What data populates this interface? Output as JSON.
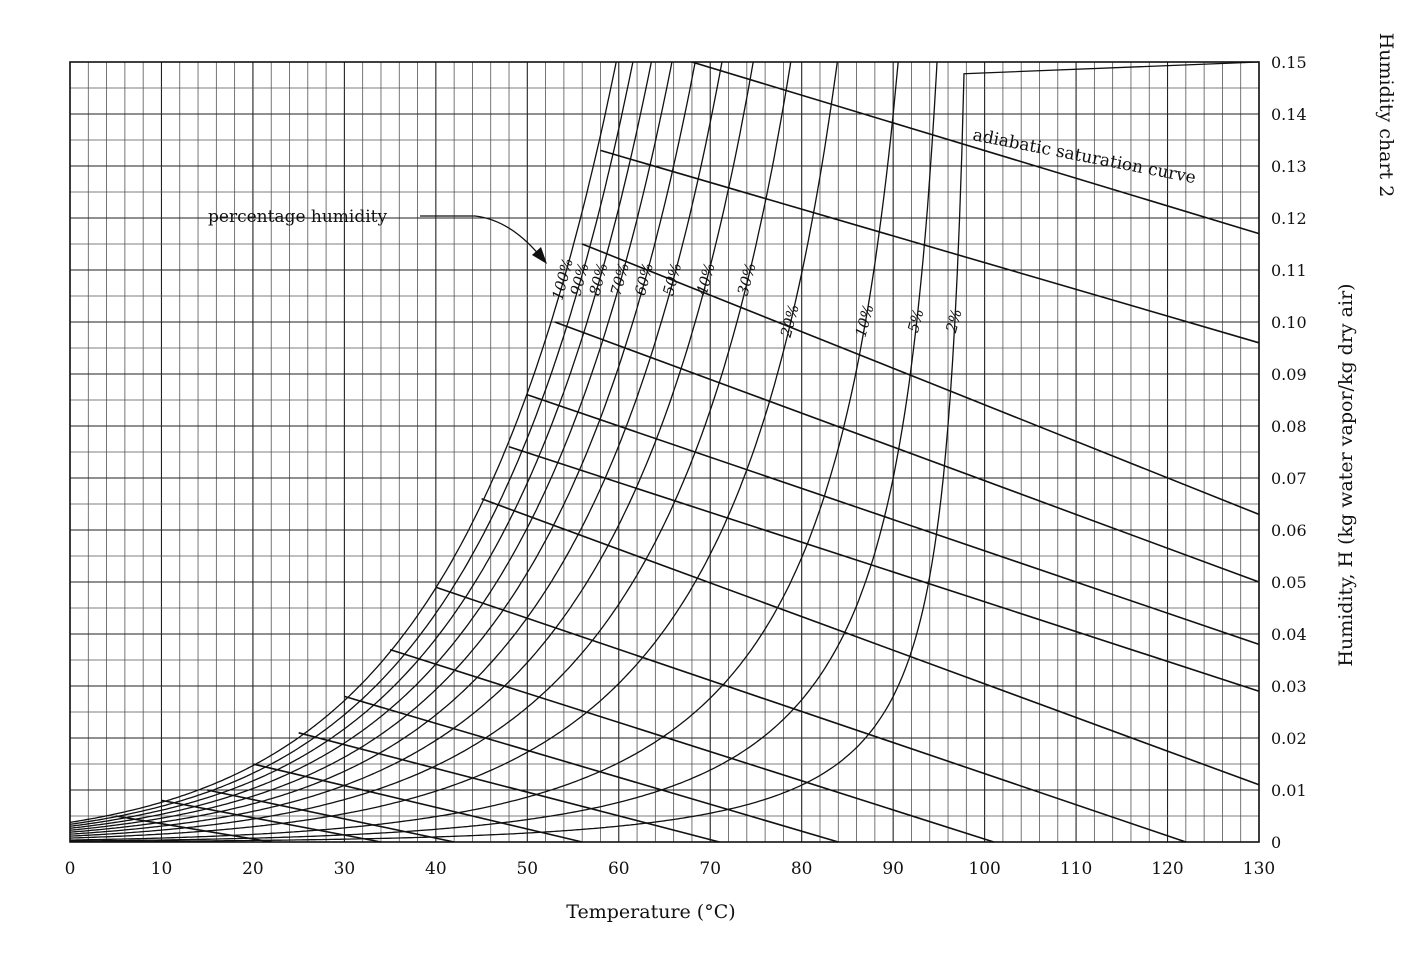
{
  "side_title": "Humidity chart 2",
  "annotations": {
    "percentage_humidity": "percentage humidity",
    "adiabatic": "adiabatic saturation curve"
  },
  "chart_data": {
    "type": "line",
    "title": "Humidity chart 2",
    "xlabel": "Temperature (°C)",
    "ylabel": "Humidity, H (kg water vapor/kg dry air)",
    "xlim": [
      0,
      130
    ],
    "ylim": [
      0,
      0.15
    ],
    "x_ticks": [
      "0",
      "10",
      "20",
      "30",
      "40",
      "50",
      "60",
      "70",
      "80",
      "90",
      "100",
      "110",
      "120",
      "130"
    ],
    "y_ticks": [
      "0",
      "0.01",
      "0.02",
      "0.03",
      "0.04",
      "0.05",
      "0.06",
      "0.07",
      "0.08",
      "0.09",
      "0.10",
      "0.11",
      "0.12",
      "0.13",
      "0.14",
      "0.15"
    ],
    "grid": true,
    "percentage_humidity_curves": [
      {
        "name": "100%",
        "percent": 100
      },
      {
        "name": "90%",
        "percent": 90
      },
      {
        "name": "80%",
        "percent": 80
      },
      {
        "name": "70%",
        "percent": 70
      },
      {
        "name": "60%",
        "percent": 60
      },
      {
        "name": "50%",
        "percent": 50
      },
      {
        "name": "40%",
        "percent": 40
      },
      {
        "name": "30%",
        "percent": 30
      },
      {
        "name": "20%",
        "percent": 20
      },
      {
        "name": "10%",
        "percent": 10
      },
      {
        "name": "5%",
        "percent": 5
      },
      {
        "name": "2%",
        "percent": 2
      }
    ],
    "adiabatic_saturation_lines": [
      {
        "start": [
          5,
          0.005
        ],
        "end": [
          22,
          0.0
        ]
      },
      {
        "start": [
          10,
          0.008
        ],
        "end": [
          34,
          0.0
        ]
      },
      {
        "start": [
          15,
          0.01
        ],
        "end": [
          42,
          0.0
        ]
      },
      {
        "start": [
          20,
          0.015
        ],
        "end": [
          56,
          0.0
        ]
      },
      {
        "start": [
          25,
          0.021
        ],
        "end": [
          71,
          0.0
        ]
      },
      {
        "start": [
          30,
          0.028
        ],
        "end": [
          84,
          0.0
        ]
      },
      {
        "start": [
          35,
          0.037
        ],
        "end": [
          101,
          0.0
        ]
      },
      {
        "start": [
          40,
          0.049
        ],
        "end": [
          122,
          0.0
        ]
      },
      {
        "start": [
          45,
          0.066
        ],
        "end": [
          130,
          0.011
        ]
      },
      {
        "start": [
          48,
          0.076
        ],
        "end": [
          130,
          0.029
        ]
      },
      {
        "start": [
          50,
          0.086
        ],
        "end": [
          130,
          0.038
        ]
      },
      {
        "start": [
          53,
          0.1
        ],
        "end": [
          130,
          0.05
        ]
      },
      {
        "start": [
          56,
          0.115
        ],
        "end": [
          130,
          0.063
        ]
      },
      {
        "start": [
          58,
          0.133
        ],
        "end": [
          130,
          0.096
        ]
      },
      {
        "start": [
          68,
          0.15
        ],
        "end": [
          130,
          0.117
        ]
      }
    ]
  }
}
